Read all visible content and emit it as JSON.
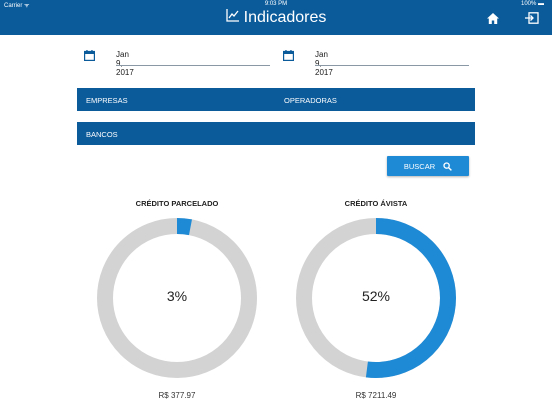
{
  "status_bar": {
    "carrier": "Carrier ᯤ",
    "time": "9:03 PM",
    "battery": "100% ▬"
  },
  "header": {
    "title": "Indicadores",
    "title_icon": "chart-icon",
    "home_icon": "home-icon",
    "logout_icon": "logout-icon"
  },
  "filters": {
    "date_start": "Jan 9, 2017",
    "date_end": "Jan 9, 2017",
    "empresas_label": "EMPRESAS",
    "operadoras_label": "OPERADORAS",
    "bancos_label": "BANCOS",
    "search_label": "BUSCAR"
  },
  "charts": [
    {
      "title": "CRÉDITO PARCELADO",
      "percent_label": "3%",
      "amount": "R$ 377.97"
    },
    {
      "title": "CRÉDITO ÁVISTA",
      "percent_label": "52%",
      "amount": "R$ 7211.49"
    }
  ],
  "chart_data": [
    {
      "type": "pie",
      "title": "CRÉDITO PARCELADO",
      "value_percent": 3,
      "amount": "R$ 377.97"
    },
    {
      "type": "pie",
      "title": "CRÉDITO ÁVISTA",
      "value_percent": 52,
      "amount": "R$ 7211.49"
    }
  ],
  "colors": {
    "primary": "#0b5b9b",
    "accent": "#1e8ad6",
    "track": "#d3d3d3"
  }
}
